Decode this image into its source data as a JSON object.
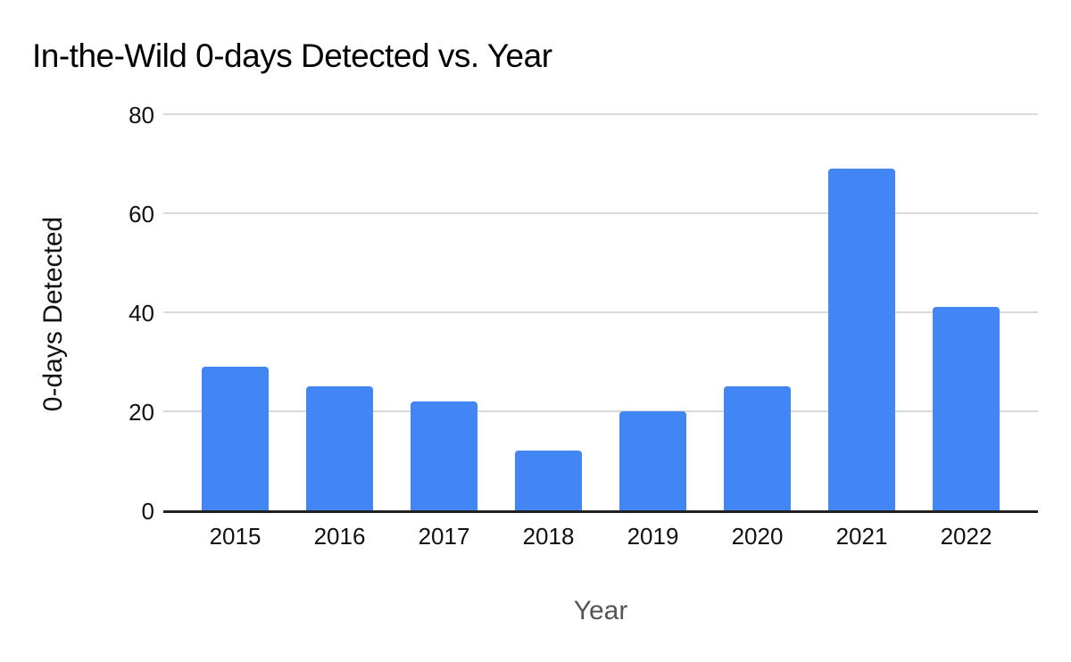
{
  "chart_data": {
    "type": "bar",
    "title": "In-the-Wild 0-days Detected vs. Year",
    "xlabel": "Year",
    "ylabel": "0-days Detected",
    "categories": [
      "2015",
      "2016",
      "2017",
      "2018",
      "2019",
      "2020",
      "2021",
      "2022"
    ],
    "values": [
      29,
      25,
      22,
      12,
      20,
      25,
      69,
      41
    ],
    "ylim": [
      0,
      80
    ],
    "yticks": [
      0,
      20,
      40,
      60,
      80
    ],
    "grid": true,
    "legend_position": "none",
    "colors": {
      "bar": "#4285F4",
      "gridline": "#d9d9d9",
      "baseline": "#212121",
      "title": "#000000",
      "tick_label": "#111111",
      "y_axis_title": "#111111",
      "x_axis_title": "#555555"
    }
  }
}
